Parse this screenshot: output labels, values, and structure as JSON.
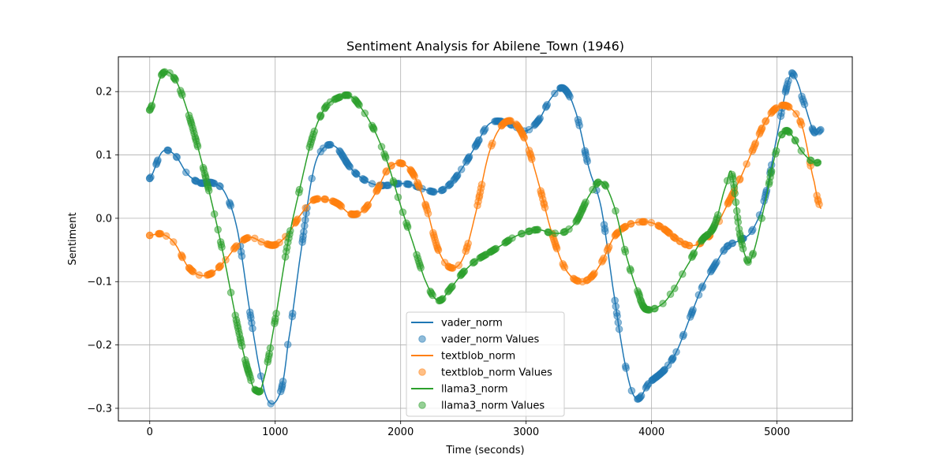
{
  "chart_data": {
    "type": "line",
    "title": "Sentiment Analysis for Abilene_Town (1946)",
    "xlabel": "Time (seconds)",
    "ylabel": "Sentiment",
    "xlim": [
      -250,
      5600
    ],
    "ylim": [
      -0.32,
      0.255
    ],
    "xticks": [
      0,
      1000,
      2000,
      3000,
      4000,
      5000
    ],
    "yticks": [
      -0.3,
      -0.2,
      -0.1,
      0.0,
      0.1,
      0.2
    ],
    "xtick_labels": [
      "0",
      "1000",
      "2000",
      "3000",
      "4000",
      "5000"
    ],
    "ytick_labels": [
      "−0.3",
      "−0.2",
      "−0.1",
      "0.0",
      "0.1",
      "0.2"
    ],
    "grid": true,
    "legend_position": "lower-center",
    "series": [
      {
        "name": "vader_norm",
        "scatter_name": "vader_norm Values",
        "color": "#1f77b4",
        "points": [
          [
            0,
            0.063
          ],
          [
            100,
            0.105
          ],
          [
            200,
            0.1
          ],
          [
            300,
            0.07
          ],
          [
            400,
            0.056
          ],
          [
            500,
            0.056
          ],
          [
            600,
            0.04
          ],
          [
            700,
            -0.02
          ],
          [
            800,
            -0.15
          ],
          [
            900,
            -0.26
          ],
          [
            970,
            -0.293
          ],
          [
            1050,
            -0.27
          ],
          [
            1100,
            -0.2
          ],
          [
            1200,
            -0.06
          ],
          [
            1300,
            0.07
          ],
          [
            1380,
            0.11
          ],
          [
            1480,
            0.113
          ],
          [
            1600,
            0.08
          ],
          [
            1700,
            0.062
          ],
          [
            1800,
            0.053
          ],
          [
            1900,
            0.052
          ],
          [
            2000,
            0.055
          ],
          [
            2100,
            0.052
          ],
          [
            2200,
            0.045
          ],
          [
            2300,
            0.042
          ],
          [
            2400,
            0.055
          ],
          [
            2500,
            0.082
          ],
          [
            2600,
            0.115
          ],
          [
            2700,
            0.148
          ],
          [
            2800,
            0.153
          ],
          [
            2900,
            0.146
          ],
          [
            3000,
            0.138
          ],
          [
            3100,
            0.155
          ],
          [
            3200,
            0.19
          ],
          [
            3300,
            0.205
          ],
          [
            3400,
            0.165
          ],
          [
            3500,
            0.08
          ],
          [
            3600,
            0.015
          ],
          [
            3700,
            -0.12
          ],
          [
            3800,
            -0.24
          ],
          [
            3880,
            -0.285
          ],
          [
            3980,
            -0.26
          ],
          [
            4100,
            -0.24
          ],
          [
            4200,
            -0.21
          ],
          [
            4300,
            -0.16
          ],
          [
            4400,
            -0.11
          ],
          [
            4500,
            -0.075
          ],
          [
            4600,
            -0.045
          ],
          [
            4700,
            -0.035
          ],
          [
            4800,
            -0.02
          ],
          [
            4900,
            0.03
          ],
          [
            5000,
            0.13
          ],
          [
            5100,
            0.222
          ],
          [
            5150,
            0.22
          ],
          [
            5200,
            0.19
          ],
          [
            5300,
            0.135
          ],
          [
            5350,
            0.14
          ]
        ]
      },
      {
        "name": "textblob_norm",
        "scatter_name": "textblob_norm Values",
        "color": "#ff7f0e",
        "points": [
          [
            0,
            -0.027
          ],
          [
            100,
            -0.025
          ],
          [
            200,
            -0.04
          ],
          [
            300,
            -0.075
          ],
          [
            400,
            -0.09
          ],
          [
            500,
            -0.086
          ],
          [
            600,
            -0.067
          ],
          [
            700,
            -0.042
          ],
          [
            800,
            -0.03
          ],
          [
            900,
            -0.038
          ],
          [
            1000,
            -0.042
          ],
          [
            1100,
            -0.025
          ],
          [
            1200,
            0.005
          ],
          [
            1300,
            0.028
          ],
          [
            1400,
            0.03
          ],
          [
            1500,
            0.023
          ],
          [
            1600,
            0.007
          ],
          [
            1700,
            0.012
          ],
          [
            1800,
            0.04
          ],
          [
            1900,
            0.078
          ],
          [
            2000,
            0.087
          ],
          [
            2100,
            0.07
          ],
          [
            2200,
            0.02
          ],
          [
            2300,
            -0.05
          ],
          [
            2400,
            -0.078
          ],
          [
            2500,
            -0.062
          ],
          [
            2600,
            0.01
          ],
          [
            2700,
            0.1
          ],
          [
            2800,
            0.145
          ],
          [
            2900,
            0.152
          ],
          [
            3000,
            0.12
          ],
          [
            3100,
            0.055
          ],
          [
            3200,
            -0.02
          ],
          [
            3300,
            -0.075
          ],
          [
            3400,
            -0.098
          ],
          [
            3500,
            -0.096
          ],
          [
            3600,
            -0.07
          ],
          [
            3700,
            -0.03
          ],
          [
            3800,
            -0.012
          ],
          [
            3900,
            -0.006
          ],
          [
            4000,
            -0.007
          ],
          [
            4100,
            -0.017
          ],
          [
            4200,
            -0.033
          ],
          [
            4300,
            -0.043
          ],
          [
            4400,
            -0.038
          ],
          [
            4500,
            -0.018
          ],
          [
            4600,
            0.02
          ],
          [
            4700,
            0.06
          ],
          [
            4800,
            0.105
          ],
          [
            4900,
            0.15
          ],
          [
            5000,
            0.175
          ],
          [
            5100,
            0.175
          ],
          [
            5200,
            0.145
          ],
          [
            5300,
            0.055
          ],
          [
            5350,
            0.015
          ]
        ]
      },
      {
        "name": "llama3_norm",
        "scatter_name": "llama3_norm Values",
        "color": "#2ca02c",
        "points": [
          [
            0,
            0.171
          ],
          [
            100,
            0.228
          ],
          [
            200,
            0.22
          ],
          [
            300,
            0.17
          ],
          [
            400,
            0.1
          ],
          [
            500,
            0.02
          ],
          [
            600,
            -0.07
          ],
          [
            700,
            -0.17
          ],
          [
            800,
            -0.25
          ],
          [
            850,
            -0.272
          ],
          [
            900,
            -0.26
          ],
          [
            1000,
            -0.16
          ],
          [
            1100,
            -0.04
          ],
          [
            1200,
            0.05
          ],
          [
            1300,
            0.13
          ],
          [
            1400,
            0.175
          ],
          [
            1500,
            0.19
          ],
          [
            1600,
            0.193
          ],
          [
            1700,
            0.17
          ],
          [
            1800,
            0.135
          ],
          [
            1900,
            0.085
          ],
          [
            2000,
            0.02
          ],
          [
            2100,
            -0.04
          ],
          [
            2200,
            -0.1
          ],
          [
            2300,
            -0.13
          ],
          [
            2400,
            -0.11
          ],
          [
            2500,
            -0.085
          ],
          [
            2600,
            -0.067
          ],
          [
            2700,
            -0.055
          ],
          [
            2800,
            -0.043
          ],
          [
            2900,
            -0.03
          ],
          [
            3000,
            -0.022
          ],
          [
            3100,
            -0.018
          ],
          [
            3200,
            -0.023
          ],
          [
            3300,
            -0.022
          ],
          [
            3400,
            -0.005
          ],
          [
            3500,
            0.035
          ],
          [
            3600,
            0.058
          ],
          [
            3700,
            0.02
          ],
          [
            3800,
            -0.06
          ],
          [
            3900,
            -0.12
          ],
          [
            3950,
            -0.143
          ],
          [
            4050,
            -0.14
          ],
          [
            4150,
            -0.12
          ],
          [
            4300,
            -0.07
          ],
          [
            4400,
            -0.035
          ],
          [
            4500,
            -0.012
          ],
          [
            4600,
            0.055
          ],
          [
            4640,
            0.07
          ],
          [
            4700,
            -0.02
          ],
          [
            4760,
            -0.065
          ],
          [
            4800,
            -0.06
          ],
          [
            4900,
            0.02
          ],
          [
            5000,
            0.11
          ],
          [
            5050,
            0.135
          ],
          [
            5100,
            0.135
          ],
          [
            5200,
            0.105
          ],
          [
            5300,
            0.088
          ],
          [
            5350,
            0.09
          ]
        ]
      }
    ]
  }
}
